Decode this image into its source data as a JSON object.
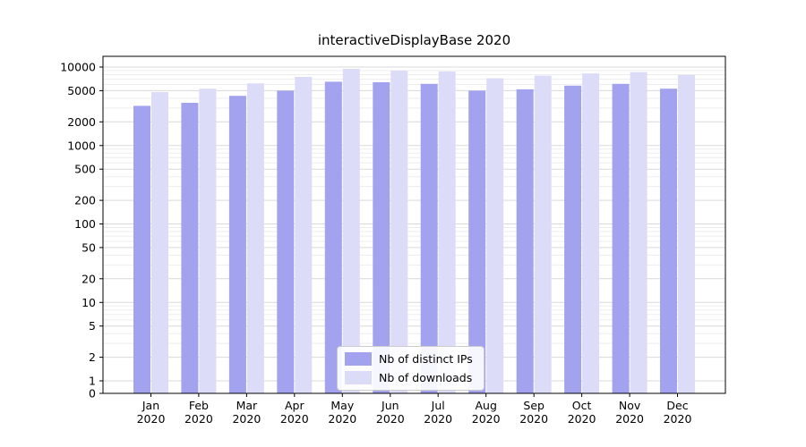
{
  "figure": {
    "background": "#ffffff"
  },
  "chart_data": {
    "type": "bar",
    "title": "interactiveDisplayBase 2020",
    "categories": [
      "Jan",
      "Feb",
      "Mar",
      "Apr",
      "May",
      "Jun",
      "Jul",
      "Aug",
      "Sep",
      "Oct",
      "Nov",
      "Dec"
    ],
    "category_year": "2020",
    "series": [
      {
        "name": "Nb of distinct IPs",
        "color": "#a2a2ee",
        "values": [
          3200,
          3500,
          4300,
          5000,
          6500,
          6400,
          6100,
          5000,
          5200,
          5800,
          6100,
          5300
        ]
      },
      {
        "name": "Nb of downloads",
        "color": "#dcdcf8",
        "values": [
          4800,
          5300,
          6200,
          7500,
          9500,
          9000,
          8800,
          7200,
          7800,
          8300,
          8600,
          7900
        ]
      }
    ],
    "yscale": "symlog",
    "yticks": [
      0,
      1,
      2,
      5,
      10,
      20,
      50,
      100,
      200,
      500,
      1000,
      2000,
      5000,
      10000
    ],
    "ylim": [
      0,
      13000
    ],
    "grid": true,
    "legend_position": "lower center",
    "colors": {
      "major_grid": "#d9d9d9",
      "minor_grid": "#ededed",
      "axis": "#000000"
    }
  }
}
